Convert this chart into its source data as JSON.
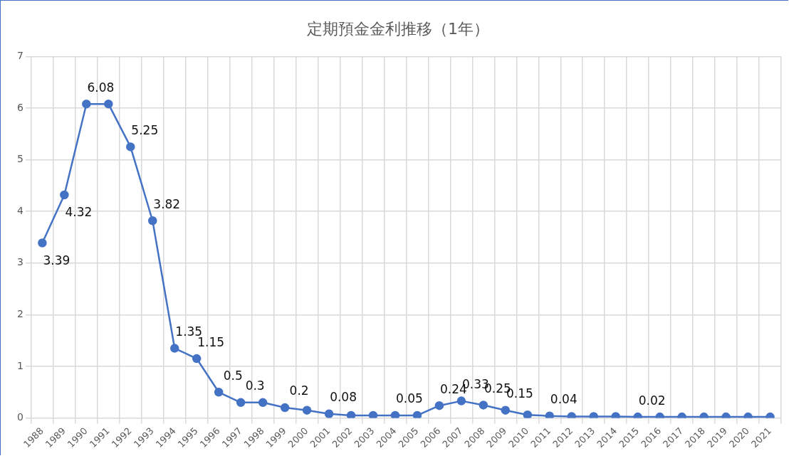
{
  "chart_data": {
    "type": "line",
    "title": "定期預金金利推移（1年）",
    "categories": [
      "1988",
      "1989",
      "1990",
      "1991",
      "1992",
      "1993",
      "1994",
      "1995",
      "1996",
      "1997",
      "1998",
      "1999",
      "2000",
      "2001",
      "2002",
      "2003",
      "2004",
      "2005",
      "2006",
      "2007",
      "2008",
      "2009",
      "2010",
      "2011",
      "2012",
      "2013",
      "2014",
      "2015",
      "2016",
      "2017",
      "2018",
      "2019",
      "2020",
      "2021"
    ],
    "series": [
      {
        "color": "#4472c4",
        "values": [
          3.39,
          4.32,
          6.08,
          6.08,
          5.25,
          3.82,
          1.35,
          1.15,
          0.5,
          0.3,
          0.3,
          0.2,
          0.15,
          0.08,
          0.05,
          0.05,
          0.05,
          0.05,
          0.24,
          0.33,
          0.25,
          0.15,
          0.06,
          0.04,
          0.03,
          0.03,
          0.03,
          0.02,
          0.02,
          0.02,
          0.02,
          0.02,
          0.02,
          0.02
        ],
        "value_labels": [
          "3.39",
          "4.32",
          "6.08",
          null,
          "5.25",
          "3.82",
          "1.35",
          "1.15",
          "0.5",
          "0.3",
          null,
          "0.2",
          null,
          "0.08",
          null,
          null,
          "0.05",
          null,
          "0.24",
          "0.33",
          "0.25",
          "0.15",
          null,
          "0.04",
          null,
          null,
          null,
          "0.02",
          null,
          null,
          null,
          null,
          null,
          null
        ]
      }
    ],
    "ylim": [
      0,
      7
    ],
    "yticks": [
      0,
      1,
      2,
      3,
      4,
      5,
      6,
      7
    ],
    "grid": true,
    "legend": false,
    "marker": "circle",
    "line_style": "solid"
  }
}
